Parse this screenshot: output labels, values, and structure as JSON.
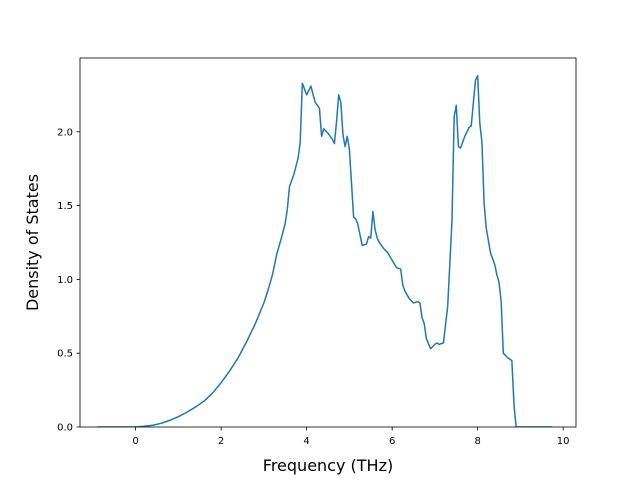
{
  "chart_data": {
    "type": "line",
    "title": "",
    "xlabel": "Frequency (THz)",
    "ylabel": "Density of States",
    "xlim": [
      -1.3,
      10.3
    ],
    "ylim": [
      0.0,
      2.5
    ],
    "xticks": [
      0,
      2,
      4,
      6,
      8,
      10
    ],
    "xtick_labels": [
      "0",
      "2",
      "4",
      "6",
      "8",
      "10"
    ],
    "yticks": [
      0.0,
      0.5,
      1.0,
      1.5,
      2.0
    ],
    "ytick_labels": [
      "0.0",
      "0.5",
      "1.0",
      "1.5",
      "2.0"
    ],
    "grid": false,
    "legend": false,
    "series": [
      {
        "color": "#1f77b4",
        "x": [
          -0.9,
          0.0,
          0.2,
          0.4,
          0.6,
          0.8,
          1.0,
          1.2,
          1.4,
          1.6,
          1.8,
          2.0,
          2.2,
          2.4,
          2.6,
          2.8,
          3.0,
          3.1,
          3.2,
          3.3,
          3.4,
          3.5,
          3.55,
          3.6,
          3.7,
          3.8,
          3.85,
          3.9,
          4.0,
          4.1,
          4.2,
          4.3,
          4.35,
          4.4,
          4.5,
          4.6,
          4.65,
          4.7,
          4.75,
          4.8,
          4.85,
          4.9,
          4.95,
          5.0,
          5.05,
          5.1,
          5.15,
          5.2,
          5.3,
          5.4,
          5.45,
          5.5,
          5.55,
          5.6,
          5.65,
          5.7,
          5.8,
          5.9,
          6.0,
          6.1,
          6.2,
          6.25,
          6.3,
          6.4,
          6.5,
          6.6,
          6.65,
          6.7,
          6.75,
          6.8,
          6.9,
          7.0,
          7.05,
          7.1,
          7.2,
          7.3,
          7.4,
          7.45,
          7.5,
          7.55,
          7.6,
          7.65,
          7.7,
          7.8,
          7.85,
          7.9,
          7.95,
          8.0,
          8.05,
          8.1,
          8.15,
          8.2,
          8.3,
          8.4,
          8.45,
          8.5,
          8.55,
          8.6,
          8.7,
          8.75,
          8.8,
          8.85,
          8.9,
          9.0,
          9.5,
          9.75
        ],
        "y": [
          0.0,
          0.0,
          0.005,
          0.012,
          0.025,
          0.045,
          0.07,
          0.1,
          0.135,
          0.175,
          0.23,
          0.3,
          0.38,
          0.47,
          0.58,
          0.7,
          0.84,
          0.93,
          1.03,
          1.17,
          1.27,
          1.38,
          1.48,
          1.63,
          1.71,
          1.82,
          1.93,
          2.33,
          2.25,
          2.31,
          2.2,
          2.16,
          1.97,
          2.02,
          1.99,
          1.95,
          1.92,
          2.07,
          2.25,
          2.2,
          1.98,
          1.9,
          1.97,
          1.88,
          1.65,
          1.42,
          1.41,
          1.37,
          1.23,
          1.24,
          1.29,
          1.28,
          1.46,
          1.34,
          1.28,
          1.25,
          1.21,
          1.18,
          1.13,
          1.08,
          1.07,
          0.96,
          0.92,
          0.87,
          0.84,
          0.85,
          0.84,
          0.74,
          0.7,
          0.6,
          0.53,
          0.56,
          0.57,
          0.56,
          0.57,
          0.82,
          1.4,
          2.1,
          2.18,
          1.9,
          1.89,
          1.93,
          1.97,
          2.03,
          2.04,
          2.2,
          2.35,
          2.38,
          2.06,
          1.93,
          1.52,
          1.35,
          1.18,
          1.1,
          1.03,
          0.98,
          0.85,
          0.5,
          0.47,
          0.46,
          0.45,
          0.15,
          0.0,
          0.0,
          0.0,
          0.0
        ]
      }
    ]
  }
}
